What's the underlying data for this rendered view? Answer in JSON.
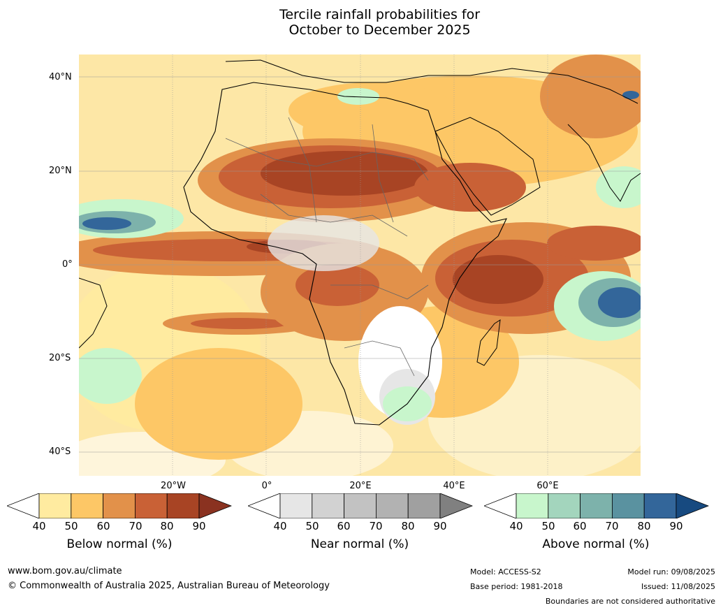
{
  "title_line1": "Tercile rainfall probabilities for",
  "title_line2": "October to December 2025",
  "lat_labels": [
    "40°N",
    "20°N",
    "0°",
    "20°S",
    "40°S"
  ],
  "lon_labels": [
    "20°W",
    "0°",
    "20°E",
    "40°E",
    "60°E"
  ],
  "colorbars": [
    {
      "label": "Below normal (%)",
      "ticks": [
        "40",
        "50",
        "60",
        "70",
        "80",
        "90"
      ],
      "colors": [
        "#ffffff",
        "#ffeba0",
        "#fdc766",
        "#e2914a",
        "#c96136",
        "#a84424",
        "#8a3220"
      ]
    },
    {
      "label": "Near normal (%)",
      "ticks": [
        "40",
        "50",
        "60",
        "70",
        "80",
        "90"
      ],
      "colors": [
        "#ffffff",
        "#e6e6e6",
        "#d2d2d2",
        "#c2c2c2",
        "#b2b2b2",
        "#a0a0a0",
        "#808080"
      ]
    },
    {
      "label": "Above normal (%)",
      "ticks": [
        "40",
        "50",
        "60",
        "70",
        "80",
        "90"
      ],
      "colors": [
        "#ffffff",
        "#c8f6cc",
        "#a3d5bd",
        "#7db2ab",
        "#5a92a0",
        "#33669a",
        "#174a80"
      ]
    }
  ],
  "footer": {
    "url": "www.bom.gov.au/climate",
    "copyright": "© Commonwealth of Australia 2025, Australian Bureau of Meteorology",
    "model": "Model: ACCESS-S2",
    "base_period": "Base period: 1981-2018",
    "model_run": "Model run: 09/08/2025",
    "issued": "Issued: 11/08/2025",
    "disclaimer": "Boundaries are not considered authoritative"
  }
}
